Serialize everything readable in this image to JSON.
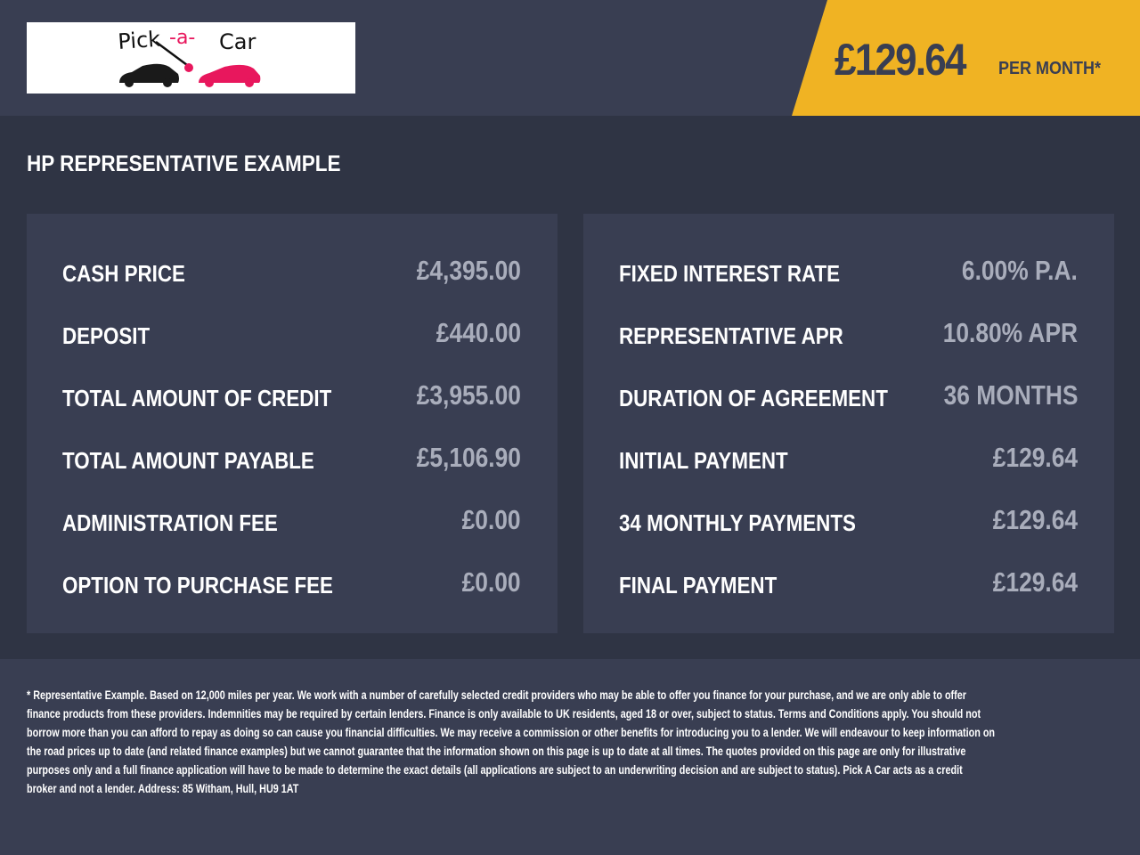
{
  "header": {
    "logo_text": "Pick -a- Car",
    "price": "£129.64",
    "per_month": "PER MONTH*"
  },
  "colors": {
    "accent": "#f0b323",
    "panel": "#393e52",
    "background": "#2f3444",
    "value": "#a9adbb",
    "logo_pink": "#e8175d"
  },
  "title": "HP REPRESENTATIVE EXAMPLE",
  "left": [
    {
      "label": "CASH PRICE",
      "value": "£4,395.00"
    },
    {
      "label": "DEPOSIT",
      "value": "£440.00"
    },
    {
      "label": "TOTAL AMOUNT OF CREDIT",
      "value": "£3,955.00"
    },
    {
      "label": "TOTAL AMOUNT PAYABLE",
      "value": "£5,106.90"
    },
    {
      "label": "ADMINISTRATION FEE",
      "value": "£0.00"
    },
    {
      "label": "OPTION TO PURCHASE FEE",
      "value": "£0.00"
    }
  ],
  "right": [
    {
      "label": "FIXED INTEREST RATE",
      "value": "6.00% P.A."
    },
    {
      "label": "REPRESENTATIVE APR",
      "value": "10.80% APR"
    },
    {
      "label": "DURATION OF AGREEMENT",
      "value": "36 MONTHS"
    },
    {
      "label": "INITIAL PAYMENT",
      "value": "£129.64"
    },
    {
      "label": "34 MONTHLY PAYMENTS",
      "value": "£129.64"
    },
    {
      "label": "FINAL PAYMENT",
      "value": "£129.64"
    }
  ],
  "footer": [
    "* Representative Example. Based on 12,000 miles per year. We work with a number of carefully selected credit providers who may be able to offer you finance for your purchase, and we are only able to offer",
    "finance products from these providers. Indemnities may be required by certain lenders. Finance is only available to UK residents, aged 18 or over, subject to status. Terms and Conditions apply. You should not",
    "borrow more than you can afford to repay as doing so can cause you financial difficulties. We may receive a commission or other benefits for introducing you to a lender. We will endeavour to keep information on",
    "the road prices up to date (and related finance examples) but we cannot guarantee that the information shown on this page is up to date at all times. The quotes provided on this page are only for illustrative",
    "purposes only and a full finance application will have to be made to determine the exact details (all applications are subject to an underwriting decision and are subject to status). Pick A Car acts as a credit",
    "broker and not a lender. Address: 85 Witham, Hull, HU9 1AT"
  ]
}
